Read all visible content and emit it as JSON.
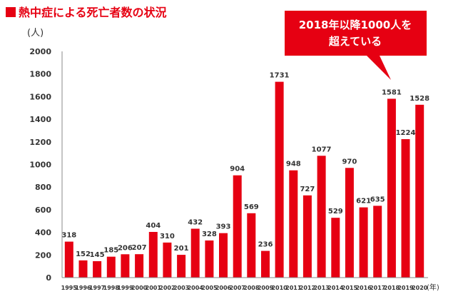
{
  "title": "熱中症による死亡者数の状況",
  "colors": {
    "bar": "#e60012",
    "accent": "#e60012",
    "axis": "#888888",
    "text": "#333333",
    "callout_text": "#ffffff"
  },
  "callout": {
    "line1": "2018年以降1000人を",
    "line2": "超えている"
  },
  "chart_data": {
    "type": "bar",
    "title": "熱中症による死亡者数の状況",
    "ylabel": "(人)",
    "xlabel": "(年)",
    "ylim": [
      0,
      2000
    ],
    "yticks": [
      0,
      200,
      400,
      600,
      800,
      1000,
      1200,
      1400,
      1600,
      1800,
      2000
    ],
    "grid": false,
    "categories": [
      "1995",
      "1996",
      "1997",
      "1998",
      "1999",
      "2000",
      "2001",
      "2002",
      "2003",
      "2004",
      "2005",
      "2006",
      "2007",
      "2008",
      "2009",
      "2010",
      "2011",
      "2012",
      "2013",
      "2014",
      "2015",
      "2016",
      "2017",
      "2018",
      "2019",
      "2020"
    ],
    "values": [
      318,
      152,
      145,
      185,
      206,
      207,
      404,
      310,
      201,
      432,
      328,
      393,
      904,
      569,
      236,
      1731,
      948,
      727,
      1077,
      529,
      970,
      621,
      635,
      1581,
      1224,
      1528
    ]
  }
}
